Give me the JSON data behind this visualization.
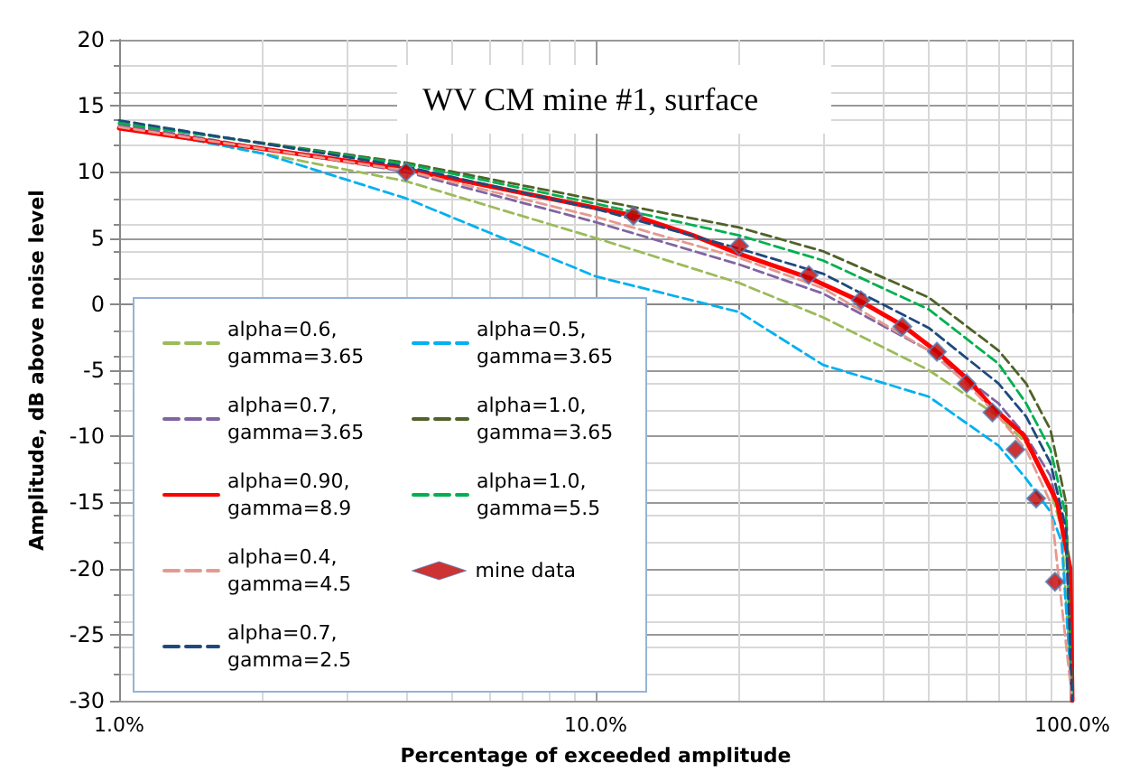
{
  "chart_data": {
    "type": "line",
    "title": "WV CM mine #1, surface",
    "xlabel": "Percentage of exceeded amplitude",
    "ylabel": "Amplitude, dB above noise level",
    "log": "x",
    "xlim": [
      1,
      100
    ],
    "xticks": [
      {
        "value": 1,
        "label": "1.0%"
      },
      {
        "value": 10,
        "label": "10.0%"
      },
      {
        "value": 100,
        "label": "100.0%"
      }
    ],
    "ylim": [
      -30,
      20
    ],
    "yticks": [
      -30,
      -25,
      -20,
      -15,
      -10,
      -5,
      0,
      5,
      10,
      15,
      20
    ],
    "grid": true,
    "legend": "bottom left",
    "marker": "none",
    "line_style": "dashed",
    "series": [
      {
        "name": "alpha=0.6, gamma=3.65",
        "color": "#9bbb59",
        "x": [
          1,
          4,
          10,
          20,
          30,
          50,
          70,
          80,
          90,
          95,
          100
        ],
        "values": [
          13.5,
          9.3,
          5.0,
          1.6,
          -1,
          -5,
          -8.5,
          -10.5,
          -14,
          -17,
          -30
        ]
      },
      {
        "name": "alpha=0.5, gamma=3.65",
        "color": "#00b0f0",
        "x": [
          1,
          2,
          4,
          10,
          20,
          30,
          50,
          70,
          80,
          90,
          95,
          100
        ],
        "values": [
          13.5,
          11.4,
          8.0,
          2.1,
          -0.6,
          -4.6,
          -7.0,
          -10.7,
          -13.2,
          -15.7,
          -18,
          -30
        ]
      },
      {
        "name": "alpha=0.7, gamma=3.65",
        "color": "#8064a2",
        "x": [
          1,
          4,
          10,
          20,
          30,
          50,
          70,
          80,
          90,
          97,
          100
        ],
        "values": [
          13.6,
          10,
          6.2,
          3,
          0.8,
          -3.5,
          -7.5,
          -10,
          -13,
          -18,
          -30
        ]
      },
      {
        "name": "alpha=1.0, gamma=3.65",
        "color": "#4f6228",
        "x": [
          1,
          4,
          10,
          20,
          30,
          50,
          70,
          80,
          90,
          97,
          100
        ],
        "values": [
          13.7,
          10.7,
          7.9,
          5.8,
          4,
          0.5,
          -3.5,
          -6,
          -9.5,
          -15,
          -30
        ]
      },
      {
        "name": "alpha=0.90, gamma=8.9",
        "color": "#ff0000",
        "line_style": "solid",
        "x": [
          1,
          4,
          12,
          16,
          20,
          28,
          36,
          44,
          52,
          60,
          68,
          79,
          93,
          99,
          100
        ],
        "values": [
          13.3,
          10.2,
          6.7,
          5.2,
          3.8,
          2,
          0.2,
          -1.6,
          -3.6,
          -5.6,
          -7.8,
          -9.9,
          -15,
          -20,
          -30
        ]
      },
      {
        "name": "alpha=1.0, gamma=5.5",
        "color": "#00b050",
        "x": [
          1,
          4,
          10,
          20,
          30,
          50,
          70,
          80,
          90,
          97,
          100
        ],
        "values": [
          13.7,
          10.6,
          7.6,
          5.2,
          3.3,
          -0.4,
          -4.5,
          -7.5,
          -11,
          -16,
          -30
        ]
      },
      {
        "name": "alpha=0.4, gamma=4.5",
        "color": "#e6998f",
        "x": [
          1,
          4,
          10,
          20,
          30,
          50,
          60,
          70,
          80,
          90,
          100
        ],
        "values": [
          13.4,
          10.1,
          6.6,
          3.5,
          1.2,
          -3.5,
          -6,
          -8.5,
          -11,
          -15,
          -30
        ]
      },
      {
        "name": "mine data",
        "type": "scatter",
        "marker": "diamond",
        "color": "#c00000",
        "x": [
          4,
          12,
          20,
          28,
          36,
          44,
          52,
          60,
          68,
          76,
          84,
          92
        ],
        "values": [
          10,
          6.7,
          4.4,
          2.2,
          0.3,
          -1.7,
          -3.6,
          -6,
          -8.2,
          -11,
          -14.7,
          -21
        ]
      },
      {
        "name": "alpha=0.7, gamma=2.5",
        "color": "#1f497d",
        "x": [
          1,
          4,
          10,
          20,
          30,
          50,
          70,
          80,
          90,
          97,
          100
        ],
        "values": [
          13.9,
          10.4,
          7.2,
          4.2,
          2.3,
          -1.8,
          -6,
          -8.5,
          -12,
          -17,
          -30
        ]
      }
    ]
  }
}
